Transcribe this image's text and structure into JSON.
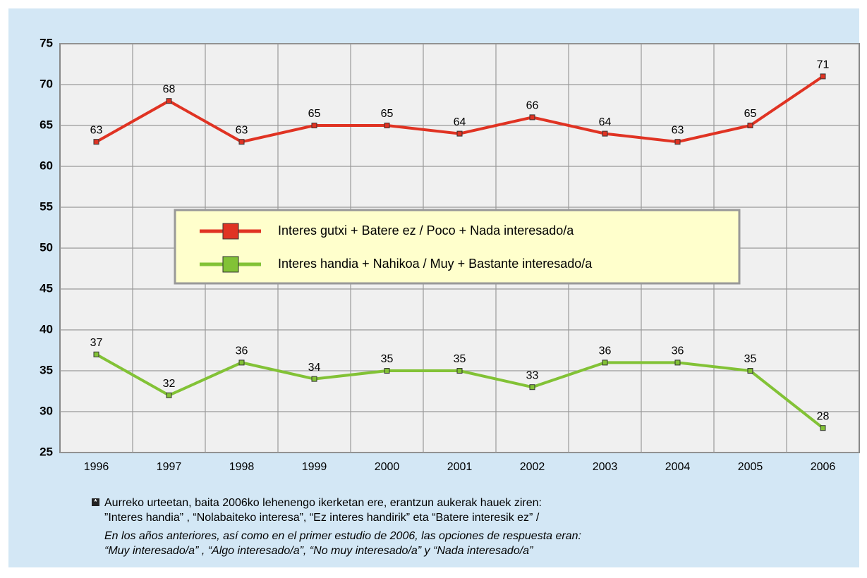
{
  "chart_data": {
    "type": "line",
    "categories": [
      "1996",
      "1997",
      "1998",
      "1999",
      "2000",
      "2001",
      "2002",
      "2003",
      "2004",
      "2005",
      "2006"
    ],
    "series": [
      {
        "name": "Interes gutxi + Batere ez / Poco + Nada interesado/a",
        "color": "#e03323",
        "values": [
          63,
          68,
          63,
          65,
          65,
          64,
          66,
          64,
          63,
          65,
          71
        ]
      },
      {
        "name": "Interes handia + Nahikoa / Muy + Bastante interesado/a",
        "color": "#82c236",
        "values": [
          37,
          32,
          36,
          34,
          35,
          35,
          33,
          36,
          36,
          35,
          28
        ]
      }
    ],
    "ylim": [
      25,
      75
    ],
    "yticks": [
      25,
      30,
      35,
      40,
      45,
      50,
      55,
      60,
      65,
      70,
      75
    ],
    "grid": true,
    "note": [
      "Aurreko urteetan, baita 2006ko lehenengo ikerketan ere, erantzun aukerak hauek ziren:",
      "”Interes handia” , “Nolabaiteko interesa”, “Ez interes handirik” eta “Batere interesik ez”  /",
      "En los años anteriores, así como en el primer estudio de 2006, las opciones de respuesta eran:",
      "“Muy interesado/a” , “Algo interesado/a”, “No muy interesado/a” y “Nada interesado/a”"
    ]
  }
}
